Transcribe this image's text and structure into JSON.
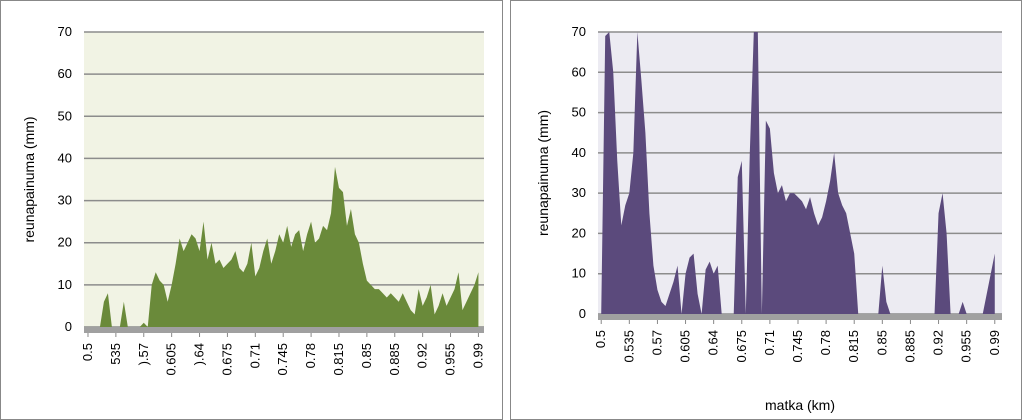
{
  "chart_data": [
    {
      "type": "area",
      "y_label": "reunapainuma (mm)",
      "color": "#6a8a3a",
      "background": "#f1f3e4",
      "grid": true,
      "x": [
        0.5,
        0.505,
        0.51,
        0.515,
        0.52,
        0.525,
        0.53,
        0.535,
        0.54,
        0.545,
        0.55,
        0.555,
        0.56,
        0.565,
        0.57,
        0.575,
        0.58,
        0.585,
        0.59,
        0.595,
        0.6,
        0.605,
        0.61,
        0.615,
        0.62,
        0.625,
        0.63,
        0.635,
        0.64,
        0.645,
        0.65,
        0.655,
        0.66,
        0.665,
        0.67,
        0.675,
        0.68,
        0.685,
        0.69,
        0.695,
        0.7,
        0.705,
        0.71,
        0.715,
        0.72,
        0.725,
        0.73,
        0.735,
        0.74,
        0.745,
        0.75,
        0.755,
        0.76,
        0.765,
        0.77,
        0.775,
        0.78,
        0.785,
        0.79,
        0.795,
        0.8,
        0.805,
        0.81,
        0.815,
        0.82,
        0.825,
        0.83,
        0.835,
        0.84,
        0.845,
        0.85,
        0.855,
        0.86,
        0.865,
        0.87,
        0.875,
        0.88,
        0.885,
        0.89,
        0.895,
        0.9,
        0.905,
        0.91,
        0.915,
        0.92,
        0.925,
        0.93,
        0.935,
        0.94,
        0.945,
        0.95,
        0.955,
        0.96,
        0.965,
        0.97,
        0.975,
        0.98,
        0.985,
        0.99
      ],
      "values": [
        0,
        0,
        0,
        0,
        6,
        8,
        0,
        0,
        0,
        6,
        0,
        0,
        0,
        0,
        1,
        0,
        10,
        13,
        11,
        10,
        6,
        10,
        15,
        21,
        18,
        20,
        22,
        21,
        18,
        25,
        16,
        20,
        15,
        16,
        14,
        15,
        16,
        18,
        14,
        13,
        15,
        20,
        12,
        14,
        18,
        21,
        15,
        18,
        22,
        20,
        24,
        19,
        22,
        23,
        18,
        22,
        25,
        20,
        21,
        24,
        23,
        27,
        38,
        33,
        32,
        24,
        28,
        22,
        20,
        15,
        11,
        10,
        9,
        9,
        8,
        7,
        8,
        7,
        6,
        8,
        6,
        4,
        3,
        9,
        5,
        7,
        10,
        3,
        5,
        8,
        5,
        7,
        9,
        13,
        4,
        6,
        8,
        10,
        13
      ],
      "xlim": [
        0.495,
        0.997
      ],
      "ylim": [
        0,
        70
      ],
      "yticks": [
        0,
        10,
        20,
        30,
        40,
        50,
        60,
        70
      ],
      "xticks": [
        0.5,
        {
          "value": 0.535,
          "label": "535"
        },
        {
          "value": 0.57,
          "label": ").57"
        },
        0.605,
        {
          "value": 0.64,
          "label": ").64"
        },
        0.675,
        0.71,
        0.745,
        0.78,
        0.815,
        0.85,
        0.885,
        0.92,
        0.955,
        0.99
      ]
    },
    {
      "type": "area",
      "y_label": "reunapainuma (mm)",
      "x_label": "matka (km)",
      "color": "#5b4a7c",
      "background": "#ecebf2",
      "grid": true,
      "x": [
        0.5,
        0.505,
        0.51,
        0.515,
        0.52,
        0.525,
        0.53,
        0.535,
        0.54,
        0.545,
        0.55,
        0.555,
        0.56,
        0.565,
        0.57,
        0.575,
        0.58,
        0.585,
        0.59,
        0.595,
        0.6,
        0.605,
        0.61,
        0.615,
        0.62,
        0.625,
        0.63,
        0.635,
        0.64,
        0.645,
        0.65,
        0.655,
        0.66,
        0.665,
        0.67,
        0.675,
        0.68,
        0.685,
        0.69,
        0.695,
        0.7,
        0.705,
        0.71,
        0.715,
        0.72,
        0.725,
        0.73,
        0.735,
        0.74,
        0.745,
        0.75,
        0.755,
        0.76,
        0.765,
        0.77,
        0.775,
        0.78,
        0.785,
        0.79,
        0.795,
        0.8,
        0.805,
        0.81,
        0.815,
        0.82,
        0.825,
        0.83,
        0.835,
        0.84,
        0.845,
        0.85,
        0.855,
        0.86,
        0.865,
        0.87,
        0.875,
        0.88,
        0.885,
        0.89,
        0.895,
        0.9,
        0.905,
        0.91,
        0.915,
        0.92,
        0.925,
        0.93,
        0.935,
        0.94,
        0.945,
        0.95,
        0.955,
        0.96,
        0.965,
        0.97,
        0.975,
        0.98,
        0.985,
        0.99
      ],
      "values": [
        0,
        69,
        70,
        60,
        38,
        22,
        27,
        30,
        40,
        70,
        58,
        45,
        25,
        12,
        6,
        3,
        2,
        5,
        8,
        12,
        0,
        10,
        14,
        15,
        5,
        0,
        11,
        13,
        10,
        12,
        0,
        0,
        0,
        0,
        34,
        38,
        0,
        40,
        70,
        70,
        0,
        48,
        46,
        35,
        30,
        32,
        28,
        30,
        30,
        29,
        28,
        26,
        29,
        25,
        22,
        24,
        28,
        33,
        40,
        30,
        27,
        25,
        20,
        15,
        0,
        0,
        0,
        0,
        0,
        0,
        12,
        3,
        0,
        0,
        0,
        0,
        0,
        0,
        0,
        0,
        0,
        0,
        0,
        0,
        25,
        30,
        20,
        0,
        0,
        0,
        3,
        0,
        0,
        0,
        0,
        0,
        5,
        10,
        15
      ],
      "xlim": [
        0.496,
        0.999
      ],
      "ylim": [
        0,
        70
      ],
      "yticks": [
        0,
        10,
        20,
        30,
        40,
        50,
        60,
        70
      ],
      "xticks": [
        0.5,
        0.535,
        0.57,
        0.605,
        0.64,
        0.675,
        0.71,
        0.745,
        0.78,
        0.815,
        0.85,
        0.885,
        0.92,
        0.955,
        0.99
      ]
    }
  ]
}
